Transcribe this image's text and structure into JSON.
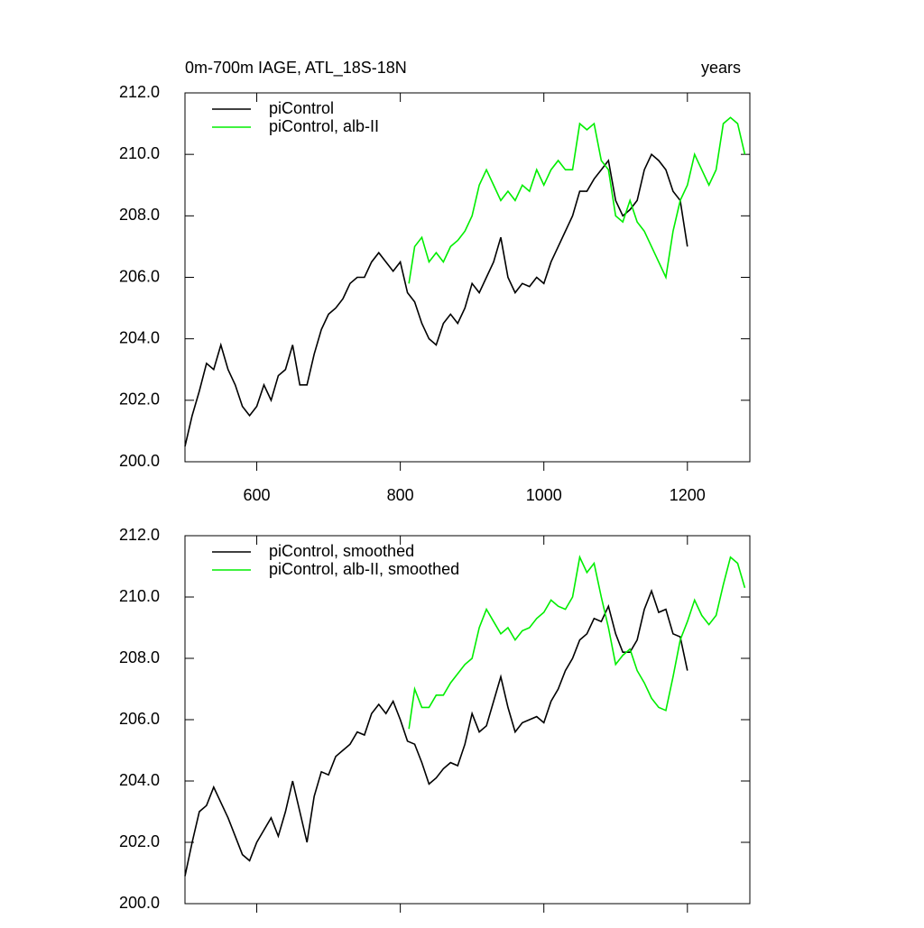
{
  "chart_data": [
    {
      "type": "line",
      "title": "0m-700m IAGE, ATL_18S-18N",
      "right_title": "years",
      "xlim": [
        500,
        1287
      ],
      "ylim": [
        200,
        212
      ],
      "xticks": [
        600,
        800,
        1000,
        1200
      ],
      "yticks": [
        {
          "value": 200,
          "label": "200.0"
        },
        {
          "value": 202,
          "label": "202.0"
        },
        {
          "value": 204,
          "label": "204.0"
        },
        {
          "value": 206,
          "label": "206.0"
        },
        {
          "value": 208,
          "label": "208.0"
        },
        {
          "value": 210,
          "label": "210.0"
        },
        {
          "value": 212,
          "label": "212.0"
        }
      ],
      "legend": "top-left",
      "series": [
        {
          "name": "piControl",
          "color": "#000000",
          "x": [
            500,
            510,
            520,
            530,
            540,
            550,
            560,
            570,
            580,
            590,
            600,
            610,
            620,
            630,
            640,
            650,
            660,
            670,
            680,
            690,
            700,
            710,
            720,
            730,
            740,
            750,
            760,
            770,
            780,
            790,
            800,
            810,
            820,
            830,
            840,
            850,
            860,
            870,
            880,
            890,
            900,
            910,
            920,
            930,
            940,
            950,
            960,
            970,
            980,
            990,
            1000,
            1010,
            1020,
            1030,
            1040,
            1050,
            1060,
            1070,
            1080,
            1090,
            1100,
            1110,
            1120,
            1130,
            1140,
            1150,
            1160,
            1170,
            1180,
            1190,
            1200
          ],
          "values": [
            200.5,
            201.5,
            202.3,
            203.2,
            203.0,
            203.8,
            203.0,
            202.5,
            201.8,
            201.5,
            201.8,
            202.5,
            202.0,
            202.8,
            203.0,
            203.8,
            202.5,
            202.5,
            203.5,
            204.3,
            204.8,
            205.0,
            205.3,
            205.8,
            206.0,
            206.0,
            206.5,
            206.8,
            206.5,
            206.2,
            206.5,
            205.5,
            205.2,
            204.5,
            204.0,
            203.8,
            204.5,
            204.8,
            204.5,
            205.0,
            205.8,
            205.5,
            206.0,
            206.5,
            207.3,
            206.0,
            205.5,
            205.8,
            205.7,
            206.0,
            205.8,
            206.5,
            207.0,
            207.5,
            208.0,
            208.8,
            208.8,
            209.2,
            209.5,
            209.8,
            208.5,
            208.0,
            208.2,
            208.5,
            209.5,
            210.0,
            209.8,
            209.5,
            208.8,
            208.5,
            207.0
          ]
        },
        {
          "name": "piControl, alb-II",
          "color": "#00ee00",
          "x": [
            812,
            820,
            830,
            840,
            850,
            860,
            870,
            880,
            890,
            900,
            910,
            920,
            930,
            940,
            950,
            960,
            970,
            980,
            990,
            1000,
            1010,
            1020,
            1030,
            1040,
            1050,
            1060,
            1070,
            1080,
            1090,
            1100,
            1110,
            1120,
            1130,
            1140,
            1150,
            1160,
            1170,
            1180,
            1190,
            1200,
            1210,
            1220,
            1230,
            1240,
            1250,
            1260,
            1270,
            1280
          ],
          "values": [
            205.8,
            207.0,
            207.3,
            206.5,
            206.8,
            206.5,
            207.0,
            207.2,
            207.5,
            208.0,
            209.0,
            209.5,
            209.0,
            208.5,
            208.8,
            208.5,
            209.0,
            208.8,
            209.5,
            209.0,
            209.5,
            209.8,
            209.5,
            209.5,
            211.0,
            210.8,
            211.0,
            209.8,
            209.5,
            208.0,
            207.8,
            208.5,
            207.8,
            207.5,
            207.0,
            206.5,
            206.0,
            207.5,
            208.5,
            209.0,
            210.0,
            209.5,
            209.0,
            209.5,
            211.0,
            211.2,
            211.0,
            210.0
          ]
        }
      ]
    },
    {
      "type": "line",
      "xlim": [
        500,
        1287
      ],
      "ylim": [
        200,
        212
      ],
      "xticks": [
        600,
        800,
        1000,
        1200
      ],
      "yticks": [
        {
          "value": 200,
          "label": "200.0"
        },
        {
          "value": 202,
          "label": "202.0"
        },
        {
          "value": 204,
          "label": "204.0"
        },
        {
          "value": 206,
          "label": "206.0"
        },
        {
          "value": 208,
          "label": "208.0"
        },
        {
          "value": 210,
          "label": "210.0"
        },
        {
          "value": 212,
          "label": "212.0"
        }
      ],
      "legend": "top-left",
      "series": [
        {
          "name": "piControl, smoothed",
          "color": "#000000",
          "x": [
            500,
            510,
            520,
            530,
            540,
            550,
            560,
            570,
            580,
            590,
            600,
            610,
            620,
            630,
            640,
            650,
            660,
            670,
            680,
            690,
            700,
            710,
            720,
            730,
            740,
            750,
            760,
            770,
            780,
            790,
            800,
            810,
            820,
            830,
            840,
            850,
            860,
            870,
            880,
            890,
            900,
            910,
            920,
            930,
            940,
            950,
            960,
            970,
            980,
            990,
            1000,
            1010,
            1020,
            1030,
            1040,
            1050,
            1060,
            1070,
            1080,
            1090,
            1100,
            1110,
            1120,
            1130,
            1140,
            1150,
            1160,
            1170,
            1180,
            1190,
            1200
          ],
          "values": [
            200.9,
            202.0,
            203.0,
            203.2,
            203.8,
            203.3,
            202.8,
            202.2,
            201.6,
            201.4,
            202.0,
            202.4,
            202.8,
            202.2,
            203.0,
            204.0,
            203.0,
            202.0,
            203.5,
            204.3,
            204.2,
            204.8,
            205.0,
            205.2,
            205.6,
            205.5,
            206.2,
            206.5,
            206.2,
            206.6,
            206.0,
            205.3,
            205.2,
            204.6,
            203.9,
            204.1,
            204.4,
            204.6,
            204.5,
            205.2,
            206.2,
            205.6,
            205.8,
            206.6,
            207.4,
            206.4,
            205.6,
            205.9,
            206.0,
            206.1,
            205.9,
            206.6,
            207.0,
            207.6,
            208.0,
            208.6,
            208.8,
            209.3,
            209.2,
            209.7,
            208.8,
            208.2,
            208.2,
            208.6,
            209.6,
            210.2,
            209.5,
            209.6,
            208.8,
            208.7,
            207.6
          ]
        },
        {
          "name": "piControl, alb-II, smoothed",
          "color": "#00ee00",
          "x": [
            812,
            820,
            830,
            840,
            850,
            860,
            870,
            880,
            890,
            900,
            910,
            920,
            930,
            940,
            950,
            960,
            970,
            980,
            990,
            1000,
            1010,
            1020,
            1030,
            1040,
            1050,
            1060,
            1070,
            1080,
            1090,
            1100,
            1110,
            1120,
            1130,
            1140,
            1150,
            1160,
            1170,
            1180,
            1190,
            1200,
            1210,
            1220,
            1230,
            1240,
            1250,
            1260,
            1270,
            1280
          ],
          "values": [
            205.7,
            207.0,
            206.4,
            206.4,
            206.8,
            206.8,
            207.2,
            207.5,
            207.8,
            208.0,
            209.0,
            209.6,
            209.2,
            208.8,
            209.0,
            208.6,
            208.9,
            209.0,
            209.3,
            209.5,
            209.9,
            209.7,
            209.6,
            210.0,
            211.3,
            210.8,
            211.1,
            210.0,
            209.0,
            207.8,
            208.1,
            208.3,
            207.6,
            207.2,
            206.7,
            206.4,
            206.3,
            207.4,
            208.6,
            209.2,
            209.9,
            209.4,
            209.1,
            209.4,
            210.4,
            211.3,
            211.1,
            210.3
          ]
        }
      ]
    }
  ]
}
